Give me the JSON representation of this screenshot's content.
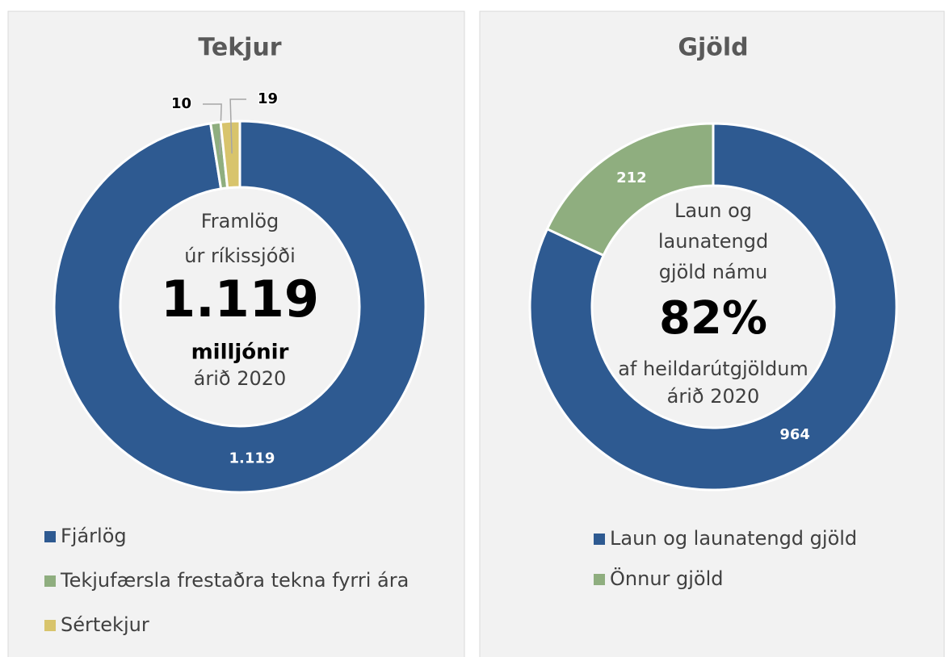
{
  "chart_data": [
    {
      "type": "donut",
      "title": "Tekjur",
      "categories": [
        "Fjárlög",
        "Tekjufærsla frestaðra tekna fyrri ára",
        "Sértekjur"
      ],
      "values": [
        1119,
        10,
        19
      ],
      "value_labels": [
        "1.119",
        "10",
        "19"
      ],
      "colors": [
        "#2e5a91",
        "#8fae7f",
        "#d8c46c"
      ],
      "center_text": [
        "Framlög",
        "úr ríkissjóði",
        "1.119",
        "milljónir",
        "árið 2020"
      ]
    },
    {
      "type": "donut",
      "title": "Gjöld",
      "categories": [
        "Laun og launatengd gjöld",
        "Önnur gjöld"
      ],
      "values": [
        964,
        212
      ],
      "colors": [
        "#2e5a91",
        "#8fae7f"
      ],
      "center_text": [
        "Laun og",
        "launatengd",
        "gjöld námu",
        "82%",
        "af heildarútgjöldum",
        "árið 2020"
      ]
    }
  ]
}
